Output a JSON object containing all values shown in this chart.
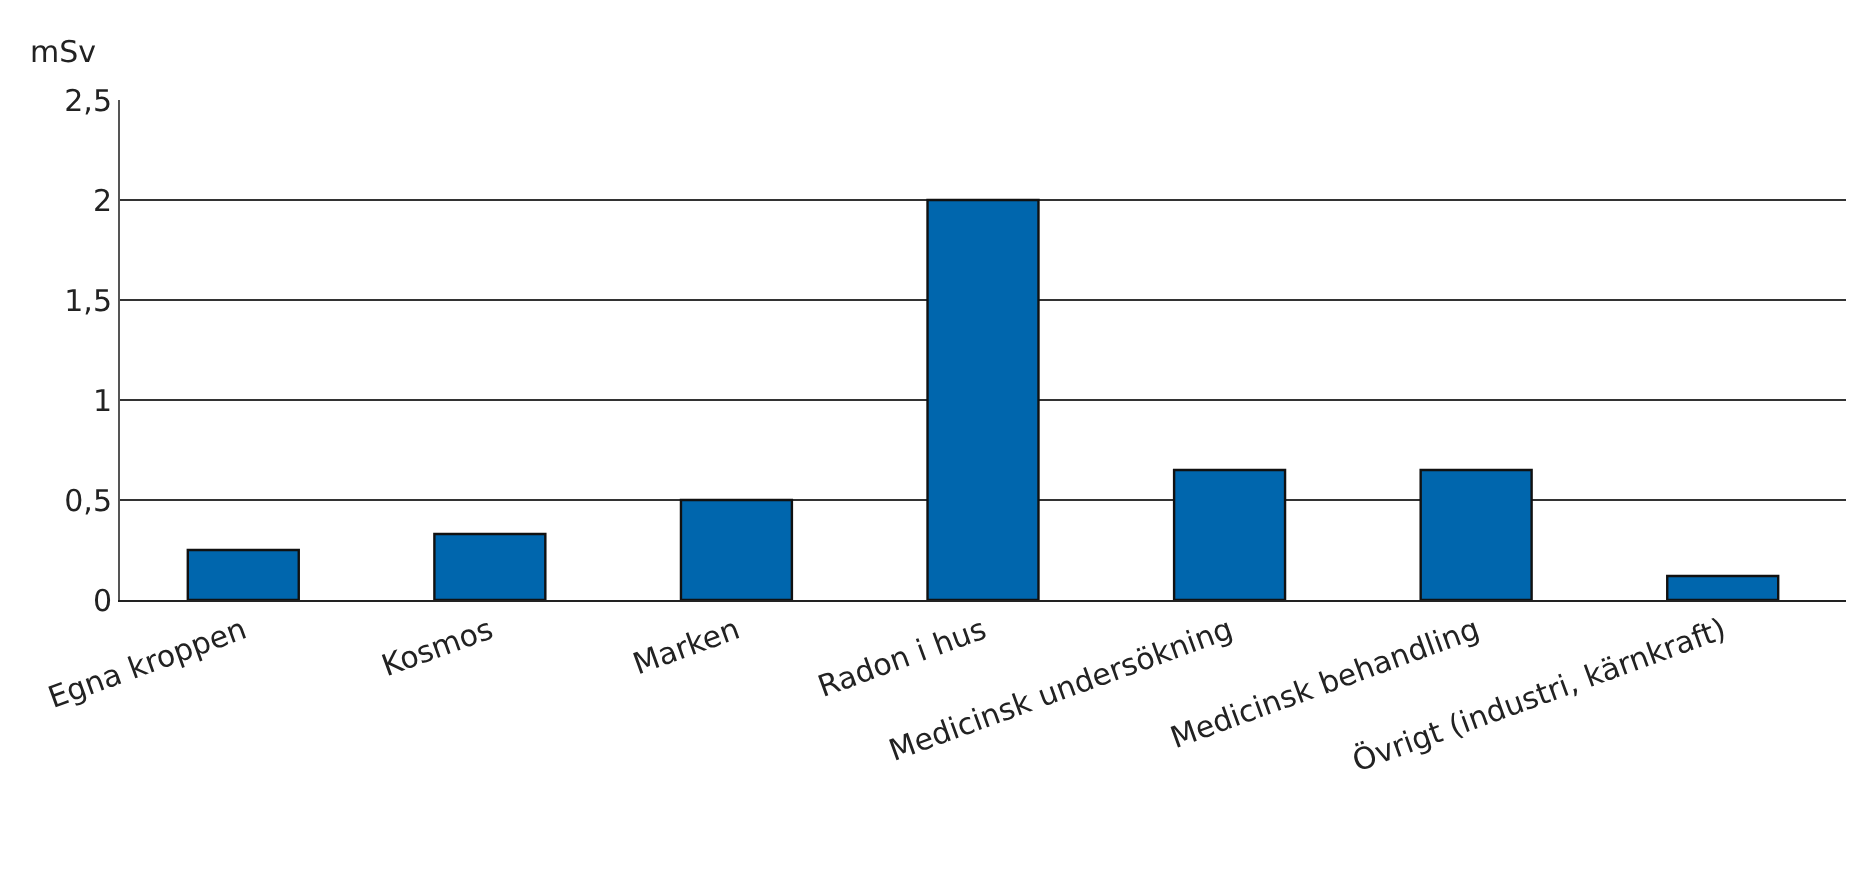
{
  "chart_data": {
    "type": "bar",
    "ylabel": "mSv",
    "categories": [
      "Egna kroppen",
      "Kosmos",
      "Marken",
      "Radon i hus",
      "Medicinsk undersökning",
      "Medicinsk behandling",
      "Övrigt (industri, kärnkraft)"
    ],
    "values": [
      0.25,
      0.33,
      0.5,
      2,
      0.65,
      0.65,
      0.12
    ],
    "color": "#0066ad",
    "ylim": [
      0,
      2.5
    ],
    "yticks": [
      {
        "value": 0,
        "label": "0"
      },
      {
        "value": 0.5,
        "label": "0,5"
      },
      {
        "value": 1,
        "label": "1"
      },
      {
        "value": 1.5,
        "label": "1,5"
      },
      {
        "value": 2,
        "label": "2"
      },
      {
        "value": 2.5,
        "label": "2,5"
      }
    ],
    "grid": "y"
  }
}
